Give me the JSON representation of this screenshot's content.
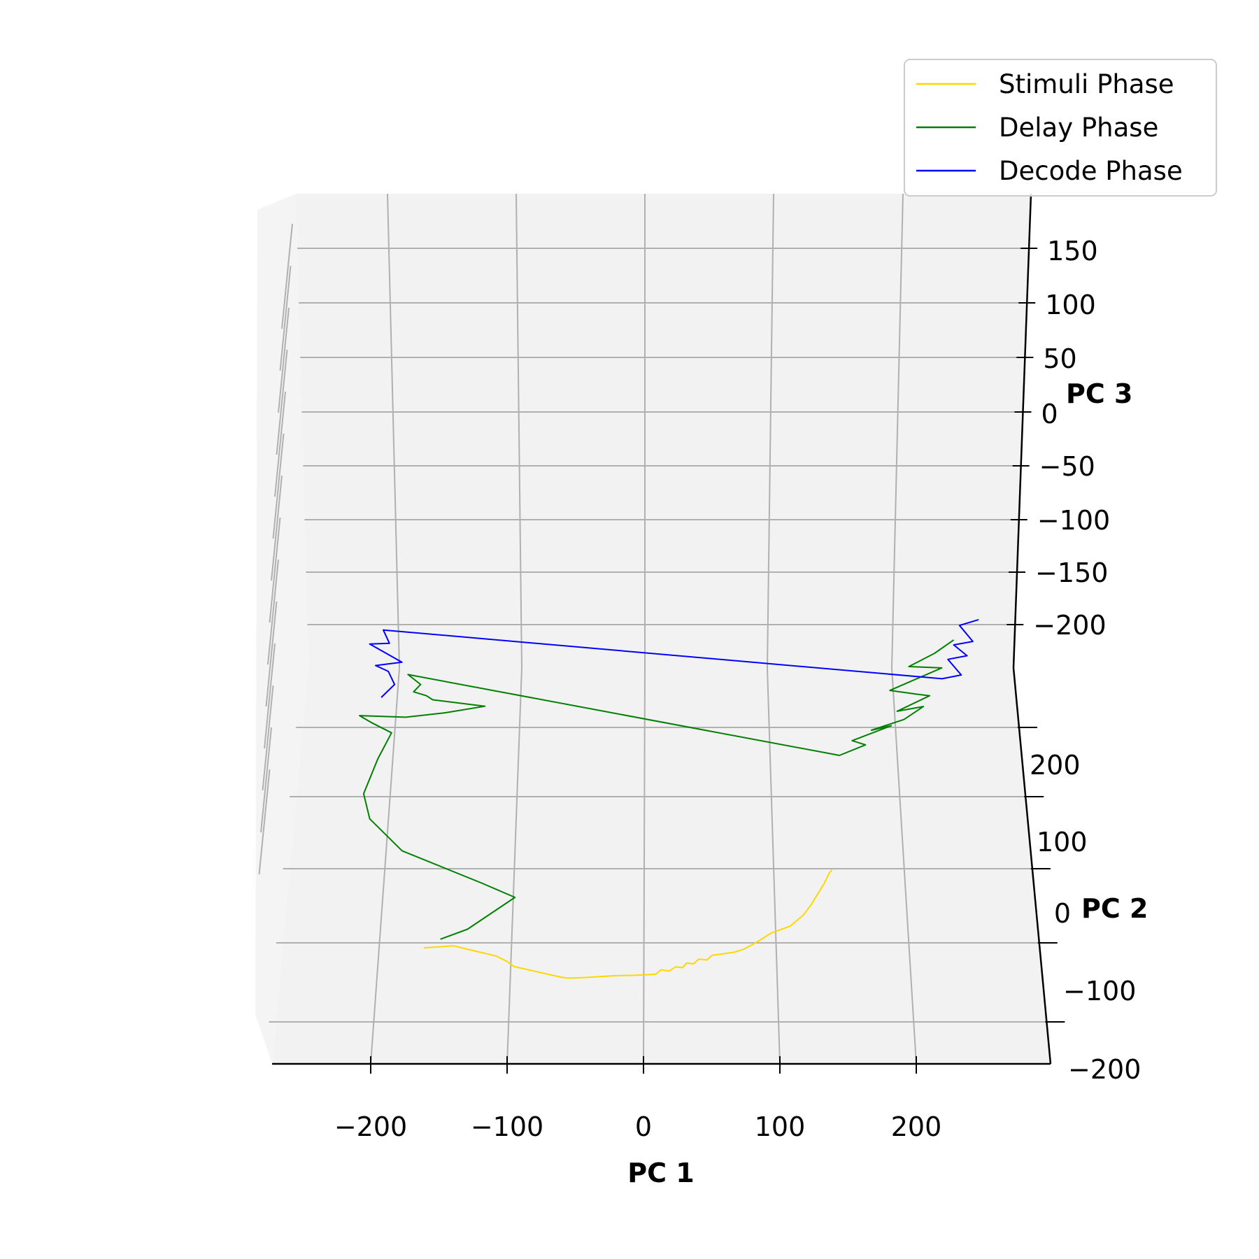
{
  "chart_data": {
    "type": "line-3d",
    "title": "",
    "axes": {
      "x": {
        "label": "PC 1",
        "ticks": [
          "−200",
          "−100",
          "0",
          "100",
          "200"
        ],
        "tick_values": [
          -200,
          -100,
          0,
          100,
          200
        ]
      },
      "y": {
        "label": "PC 2",
        "ticks": [
          "200",
          "100",
          "0",
          "−100",
          "−200"
        ],
        "tick_values": [
          200,
          100,
          0,
          -100,
          -200
        ]
      },
      "z": {
        "label": "PC 3",
        "ticks": [
          "150",
          "100",
          "50",
          "0",
          "−50",
          "−100",
          "−150",
          "−200"
        ],
        "tick_values": [
          150,
          100,
          50,
          0,
          -50,
          -100,
          -150,
          -200
        ]
      }
    },
    "grid": true,
    "legend_position": "top-right",
    "series": [
      {
        "name": "Stimuli Phase",
        "color": "#FFD700",
        "points": [
          [
            -162,
            -150,
            -151
          ],
          [
            -140,
            -148,
            -150
          ],
          [
            -130,
            -152,
            -149
          ],
          [
            -108,
            -160,
            -148
          ],
          [
            -100,
            -166,
            -148
          ],
          [
            -95,
            -172,
            -146
          ],
          [
            -60,
            -184,
            -144
          ],
          [
            -55,
            -186,
            -140
          ],
          [
            -44,
            -186,
            -138
          ],
          [
            -32,
            -186,
            -134
          ],
          [
            -22,
            -186,
            -130
          ],
          [
            -5,
            -186,
            -128
          ],
          [
            10,
            -186,
            -124
          ],
          [
            14,
            -182,
            -121
          ],
          [
            20,
            -184,
            -118
          ],
          [
            25,
            -180,
            -116
          ],
          [
            30,
            -182,
            -112
          ],
          [
            33,
            -178,
            -108
          ],
          [
            38,
            -180,
            -104
          ],
          [
            42,
            -176,
            -100
          ],
          [
            48,
            -178,
            -96
          ],
          [
            52,
            -174,
            -92
          ],
          [
            68,
            -172,
            -88
          ],
          [
            75,
            -170,
            -84
          ],
          [
            82,
            -166,
            -80
          ],
          [
            88,
            -162,
            -76
          ],
          [
            96,
            -156,
            -72
          ],
          [
            110,
            -150,
            -68
          ],
          [
            120,
            -140,
            -62
          ],
          [
            126,
            -130,
            -58
          ],
          [
            131,
            -120,
            -54
          ],
          [
            136,
            -110,
            -50
          ],
          [
            140,
            -100,
            -46
          ],
          [
            142,
            -98,
            -44
          ]
        ]
      },
      {
        "name": "Delay Phase",
        "color": "#008000",
        "points": [
          [
            -150,
            -140,
            -152
          ],
          [
            -130,
            -130,
            -148
          ],
          [
            -95,
            -100,
            -130
          ],
          [
            -120,
            -90,
            -112
          ],
          [
            -180,
            -60,
            -95
          ],
          [
            -205,
            -30,
            -80
          ],
          [
            -210,
            -10,
            -60
          ],
          [
            -200,
            20,
            -40
          ],
          [
            -190,
            40,
            -20
          ],
          [
            -205,
            55,
            -30
          ],
          [
            -215,
            70,
            -45
          ],
          [
            -180,
            80,
            -70
          ],
          [
            -150,
            90,
            -80
          ],
          [
            -120,
            100,
            -85
          ],
          [
            -160,
            110,
            -90
          ],
          [
            -165,
            120,
            -100
          ],
          [
            -175,
            130,
            -110
          ],
          [
            -170,
            150,
            -130
          ],
          [
            -180,
            165,
            -135
          ],
          [
            150,
            60,
            -120
          ],
          [
            170,
            70,
            -115
          ],
          [
            160,
            80,
            -125
          ],
          [
            190,
            90,
            -110
          ],
          [
            175,
            95,
            -130
          ],
          [
            200,
            100,
            -115
          ],
          [
            215,
            110,
            -105
          ],
          [
            195,
            115,
            -125
          ],
          [
            220,
            120,
            -100
          ],
          [
            210,
            130,
            -115
          ],
          [
            190,
            140,
            -125
          ],
          [
            230,
            150,
            -95
          ],
          [
            205,
            160,
            -110
          ],
          [
            225,
            170,
            -100
          ],
          [
            240,
            180,
            -90
          ]
        ]
      },
      {
        "name": "Decode Phase",
        "color": "#0000FF",
        "points": [
          [
            -200,
            140,
            -140
          ],
          [
            -190,
            150,
            -130
          ],
          [
            -195,
            160,
            -120
          ],
          [
            -205,
            170,
            -125
          ],
          [
            -185,
            180,
            -135
          ],
          [
            -210,
            190,
            -115
          ],
          [
            -195,
            200,
            -130
          ],
          [
            -200,
            210,
            -120
          ],
          [
            230,
            140,
            -100
          ],
          [
            245,
            150,
            -110
          ],
          [
            235,
            160,
            -95
          ],
          [
            250,
            170,
            -105
          ],
          [
            240,
            180,
            -100
          ],
          [
            255,
            190,
            -110
          ],
          [
            245,
            200,
            -95
          ],
          [
            260,
            210,
            -100
          ]
        ]
      }
    ]
  }
}
